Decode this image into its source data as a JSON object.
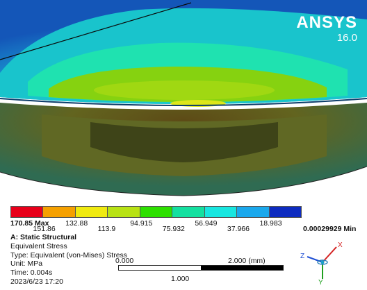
{
  "brand": {
    "name": "ANSYS",
    "version": "16.0"
  },
  "legend": {
    "levels": [
      {
        "label": "170.85 Max",
        "color": "#e8001a"
      },
      {
        "label": "151.86",
        "color": "#f5a000"
      },
      {
        "label": "132.88",
        "color": "#f0ea10"
      },
      {
        "label": "113.9",
        "color": "#b8e214"
      },
      {
        "label": "94.915",
        "color": "#2ee000"
      },
      {
        "label": "75.932",
        "color": "#14e0a0"
      },
      {
        "label": "56.949",
        "color": "#18e6e0"
      },
      {
        "label": "37.966",
        "color": "#1aa8ec"
      },
      {
        "label": "18.983",
        "color": "#0e2cc0"
      },
      {
        "label": "0.00029929 Min",
        "color": "#0018a0"
      }
    ]
  },
  "info": {
    "title": "A: Static Structural",
    "result": "Equivalent Stress",
    "type": "Type: Equivalent (von-Mises) Stress",
    "unit": "Unit: MPa",
    "time": "Time: 0.004s",
    "date": "2023/6/23 17:20"
  },
  "scale_bar": {
    "left": "0.000",
    "mid": "1.000",
    "right": "2.000 (mm)"
  },
  "triad": {
    "x": "X",
    "y": "Y",
    "z": "Z"
  },
  "colors": {
    "background_top": "#1b62c4",
    "outer_band": "#19c4cc",
    "inner_band": "#1fe2b0",
    "core_green": "#86d210",
    "hot_spot": "#dde61a",
    "lower_region": "#5f6a25",
    "lower_core": "#3e4418"
  }
}
